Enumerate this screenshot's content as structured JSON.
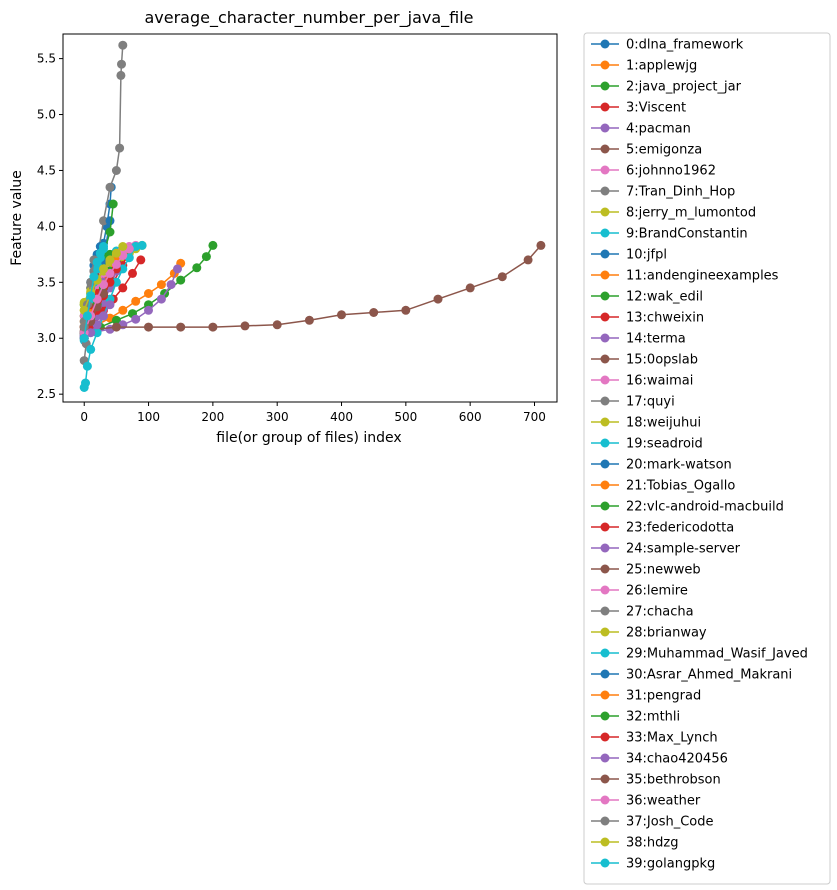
{
  "chart_data": {
    "type": "line",
    "title": "average_character_number_per_java_file",
    "xlabel": "file(or group of files) index",
    "ylabel": "Feature value",
    "xlim": [
      -33,
      735
    ],
    "ylim": [
      2.43,
      5.72
    ],
    "xticks": [
      0,
      100,
      200,
      300,
      400,
      500,
      600,
      700
    ],
    "yticks": [
      2.5,
      3.0,
      3.5,
      4.0,
      4.5,
      5.0,
      5.5
    ],
    "grid": false,
    "legend_position": "outside right",
    "series": [
      {
        "name": "0:dlna_framework",
        "color": "#1f77b4",
        "x": [
          0,
          5,
          10,
          15,
          20,
          25,
          30,
          35,
          40,
          42
        ],
        "y": [
          3.02,
          3.12,
          3.25,
          3.4,
          3.55,
          3.7,
          3.85,
          4.0,
          4.2,
          4.35
        ]
      },
      {
        "name": "1:applewjg",
        "color": "#ff7f0e",
        "x": [
          0,
          20,
          40,
          60,
          80,
          100,
          120,
          140,
          150
        ],
        "y": [
          3.05,
          3.12,
          3.18,
          3.25,
          3.33,
          3.4,
          3.48,
          3.58,
          3.67
        ]
      },
      {
        "name": "2:java_project_jar",
        "color": "#2ca02c",
        "x": [
          0,
          25,
          50,
          75,
          100,
          125,
          150,
          175,
          190,
          200
        ],
        "y": [
          3.04,
          3.1,
          3.16,
          3.22,
          3.3,
          3.4,
          3.52,
          3.63,
          3.73,
          3.83
        ]
      },
      {
        "name": "3:Viscent",
        "color": "#d62728",
        "x": [
          0,
          15,
          30,
          45,
          60,
          75,
          88
        ],
        "y": [
          3.05,
          3.15,
          3.25,
          3.35,
          3.45,
          3.58,
          3.7
        ]
      },
      {
        "name": "4:pacman",
        "color": "#9467bd",
        "x": [
          0,
          20,
          40,
          60,
          80,
          100,
          120,
          135,
          145
        ],
        "y": [
          3.03,
          3.06,
          3.08,
          3.12,
          3.17,
          3.25,
          3.35,
          3.48,
          3.62
        ]
      },
      {
        "name": "5:emigonza",
        "color": "#8c564b",
        "x": [
          0,
          50,
          100,
          150,
          200,
          250,
          300,
          350,
          400,
          450,
          500,
          550,
          600,
          650,
          690,
          710
        ],
        "y": [
          3.07,
          3.1,
          3.1,
          3.1,
          3.1,
          3.11,
          3.12,
          3.16,
          3.21,
          3.23,
          3.25,
          3.35,
          3.45,
          3.55,
          3.7,
          3.83
        ]
      },
      {
        "name": "6:johnno1962",
        "color": "#e377c2",
        "x": [
          0,
          10,
          20,
          30,
          40,
          50,
          60,
          70,
          80
        ],
        "y": [
          3.05,
          3.2,
          3.35,
          3.48,
          3.58,
          3.68,
          3.75,
          3.8,
          3.83
        ]
      },
      {
        "name": "7:Tran_Dinh_Hop",
        "color": "#7f7f7f",
        "x": [
          0,
          10,
          20,
          30,
          40,
          50,
          55,
          57,
          58,
          60
        ],
        "y": [
          3.0,
          3.4,
          3.7,
          4.05,
          4.35,
          4.5,
          4.7,
          5.35,
          5.45,
          5.62
        ]
      },
      {
        "name": "8:jerry_m_lumontod",
        "color": "#bcbd22",
        "x": [
          0,
          10,
          20,
          30,
          40,
          50,
          60,
          70,
          80,
          90
        ],
        "y": [
          3.25,
          3.35,
          3.45,
          3.55,
          3.62,
          3.68,
          3.72,
          3.76,
          3.8,
          3.83
        ]
      },
      {
        "name": "9:BrandConstantin",
        "color": "#17becf",
        "x": [
          0,
          5,
          10,
          20,
          30,
          40,
          50,
          60,
          70,
          80,
          90
        ],
        "y": [
          2.98,
          3.2,
          3.4,
          3.6,
          3.7,
          3.75,
          3.78,
          3.8,
          3.81,
          3.82,
          3.83
        ]
      },
      {
        "name": "10:jfpl",
        "color": "#1f77b4",
        "x": [
          0,
          10,
          20,
          30,
          40
        ],
        "y": [
          3.1,
          3.25,
          3.45,
          3.7,
          4.05
        ]
      },
      {
        "name": "11:andengineexamples",
        "color": "#ff7f0e",
        "x": [
          0,
          10,
          20,
          30,
          40,
          50,
          60
        ],
        "y": [
          3.2,
          3.35,
          3.5,
          3.62,
          3.7,
          3.76,
          3.8
        ]
      },
      {
        "name": "12:wak_edil",
        "color": "#2ca02c",
        "x": [
          0,
          10,
          20,
          30,
          40,
          45
        ],
        "y": [
          3.3,
          3.45,
          3.6,
          3.75,
          3.95,
          4.2
        ]
      },
      {
        "name": "13:chweixin",
        "color": "#d62728",
        "x": [
          0,
          15,
          30,
          45,
          60,
          70
        ],
        "y": [
          3.05,
          3.2,
          3.35,
          3.5,
          3.65,
          3.8
        ]
      },
      {
        "name": "14:terma",
        "color": "#9467bd",
        "x": [
          0,
          10,
          20,
          30,
          40,
          50
        ],
        "y": [
          3.02,
          3.1,
          3.2,
          3.32,
          3.45,
          3.6
        ]
      },
      {
        "name": "15:0opslab",
        "color": "#8c564b",
        "x": [
          0,
          10,
          20,
          30,
          40,
          50
        ],
        "y": [
          3.05,
          3.15,
          3.25,
          3.38,
          3.52,
          3.68
        ]
      },
      {
        "name": "16:waimai",
        "color": "#e377c2",
        "x": [
          0,
          10,
          20,
          30,
          40,
          50,
          60,
          70
        ],
        "y": [
          3.1,
          3.3,
          3.45,
          3.55,
          3.65,
          3.72,
          3.78,
          3.82
        ]
      },
      {
        "name": "17:quyi",
        "color": "#7f7f7f",
        "x": [
          0,
          3,
          6,
          10,
          15
        ],
        "y": [
          2.8,
          2.95,
          3.1,
          3.25,
          3.45
        ]
      },
      {
        "name": "18:weijuhui",
        "color": "#bcbd22",
        "x": [
          0,
          10,
          20,
          30,
          40,
          50,
          60,
          70
        ],
        "y": [
          3.32,
          3.45,
          3.55,
          3.62,
          3.68,
          3.72,
          3.76,
          3.8
        ]
      },
      {
        "name": "19:seadroid",
        "color": "#17becf",
        "x": [
          0,
          2,
          5,
          10,
          20,
          30,
          40,
          50,
          60,
          70,
          80
        ],
        "y": [
          2.56,
          2.6,
          2.75,
          2.9,
          3.05,
          3.2,
          3.35,
          3.5,
          3.62,
          3.72,
          3.82
        ]
      },
      {
        "name": "20:mark-watson",
        "color": "#1f77b4",
        "x": [
          0,
          5,
          10,
          15,
          20,
          25
        ],
        "y": [
          3.1,
          3.3,
          3.5,
          3.65,
          3.75,
          3.82
        ]
      },
      {
        "name": "21:Tobias_Ogallo",
        "color": "#ff7f0e",
        "x": [
          0,
          10,
          20,
          30,
          40,
          50
        ],
        "y": [
          3.15,
          3.3,
          3.42,
          3.55,
          3.65,
          3.75
        ]
      },
      {
        "name": "22:vlc-android-macbuild",
        "color": "#2ca02c",
        "x": [
          0,
          10,
          20,
          30,
          40
        ],
        "y": [
          3.2,
          3.35,
          3.5,
          3.62,
          3.75
        ]
      },
      {
        "name": "23:federicodotta",
        "color": "#d62728",
        "x": [
          0,
          10,
          20,
          30,
          40,
          50,
          60
        ],
        "y": [
          3.1,
          3.25,
          3.4,
          3.52,
          3.62,
          3.72,
          3.8
        ]
      },
      {
        "name": "24:sample-server",
        "color": "#9467bd",
        "x": [
          0,
          10,
          20,
          30
        ],
        "y": [
          3.05,
          3.2,
          3.35,
          3.5
        ]
      },
      {
        "name": "25:newweb",
        "color": "#8c564b",
        "x": [
          0,
          5,
          10,
          15,
          20
        ],
        "y": [
          3.1,
          3.22,
          3.35,
          3.48,
          3.6
        ]
      },
      {
        "name": "26:lemire",
        "color": "#e377c2",
        "x": [
          0,
          10,
          20,
          30,
          40,
          50,
          60
        ],
        "y": [
          3.2,
          3.35,
          3.48,
          3.58,
          3.66,
          3.74,
          3.8
        ]
      },
      {
        "name": "27:chacha",
        "color": "#7f7f7f",
        "x": [
          0,
          5,
          10,
          15
        ],
        "y": [
          3.15,
          3.3,
          3.45,
          3.6
        ]
      },
      {
        "name": "28:brianway",
        "color": "#bcbd22",
        "x": [
          0,
          10,
          20,
          30,
          40,
          50
        ],
        "y": [
          3.3,
          3.42,
          3.52,
          3.6,
          3.68,
          3.75
        ]
      },
      {
        "name": "29:Muhammad_Wasif_Javed",
        "color": "#17becf",
        "x": [
          0,
          5,
          10,
          15,
          20,
          25,
          30
        ],
        "y": [
          3.05,
          3.2,
          3.35,
          3.5,
          3.62,
          3.72,
          3.8
        ]
      },
      {
        "name": "30:Asrar_Ahmed_Makrani",
        "color": "#1f77b4",
        "x": [
          0,
          10,
          20,
          30
        ],
        "y": [
          3.0,
          3.15,
          3.3,
          3.45
        ]
      },
      {
        "name": "31:pengrad",
        "color": "#ff7f0e",
        "x": [
          0,
          10,
          20,
          30,
          40,
          50
        ],
        "y": [
          3.1,
          3.22,
          3.35,
          3.48,
          3.6,
          3.72
        ]
      },
      {
        "name": "32:mthli",
        "color": "#2ca02c",
        "x": [
          0,
          10,
          20,
          30,
          40
        ],
        "y": [
          3.05,
          3.18,
          3.3,
          3.45,
          3.6
        ]
      },
      {
        "name": "33:Max_Lynch",
        "color": "#d62728",
        "x": [
          0,
          10,
          20,
          30,
          40,
          50
        ],
        "y": [
          3.0,
          3.12,
          3.25,
          3.38,
          3.5,
          3.62
        ]
      },
      {
        "name": "34:chao420456",
        "color": "#9467bd",
        "x": [
          0,
          10,
          20,
          30,
          40
        ],
        "y": [
          3.0,
          3.05,
          3.12,
          3.2,
          3.3
        ]
      },
      {
        "name": "35:bethrobson",
        "color": "#8c564b",
        "x": [
          0,
          10,
          20,
          30
        ],
        "y": [
          3.05,
          3.15,
          3.28,
          3.4
        ]
      },
      {
        "name": "36:weather",
        "color": "#e377c2",
        "x": [
          0,
          10,
          20,
          30,
          40,
          50,
          60,
          70
        ],
        "y": [
          3.05,
          3.2,
          3.35,
          3.48,
          3.58,
          3.66,
          3.74,
          3.8
        ]
      },
      {
        "name": "37:Josh_Code",
        "color": "#7f7f7f",
        "x": [
          0,
          5,
          10,
          15
        ],
        "y": [
          3.1,
          3.3,
          3.5,
          3.7
        ]
      },
      {
        "name": "38:hdzg",
        "color": "#bcbd22",
        "x": [
          0,
          10,
          20,
          30,
          40,
          50,
          60
        ],
        "y": [
          3.25,
          3.4,
          3.52,
          3.62,
          3.7,
          3.76,
          3.82
        ]
      },
      {
        "name": "39:golangpkg",
        "color": "#17becf",
        "x": [
          0,
          5,
          10,
          15,
          20,
          25,
          30
        ],
        "y": [
          3.0,
          3.2,
          3.38,
          3.55,
          3.68,
          3.76,
          3.82
        ]
      }
    ]
  }
}
